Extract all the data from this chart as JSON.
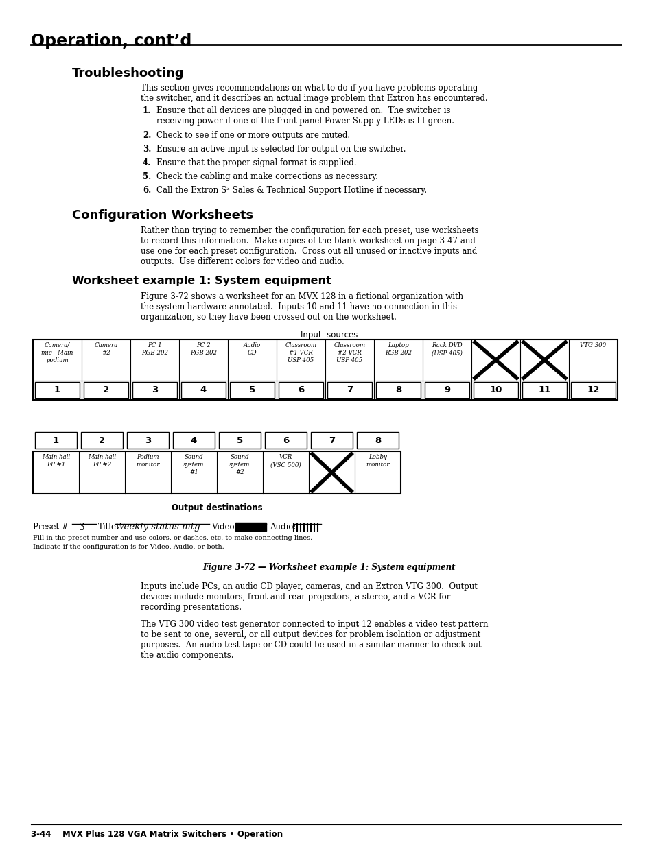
{
  "title": "Operation, cont’d",
  "bg_color": "#ffffff",
  "troubleshooting_heading": "Troubleshooting",
  "troubleshooting_intro": "This section gives recommendations on what to do if you have problems operating\nthe switcher, and it describes an actual image problem that Extron has encountered.",
  "troubleshooting_items": [
    "Ensure that all devices are plugged in and powered on.  The switcher is\nreceiving power if one of the front panel Power Supply LEDs is lit green.",
    "Check to see if one or more outputs are muted.",
    "Ensure an active input is selected for output on the switcher.",
    "Ensure that the proper signal format is supplied.",
    "Check the cabling and make corrections as necessary.",
    "Call the Extron S³ Sales & Technical Support Hotline if necessary."
  ],
  "config_heading": "Configuration Worksheets",
  "config_intro": "Rather than trying to remember the configuration for each preset, use worksheets\nto record this information.  Make copies of the blank worksheet on page 3-47 and\nuse one for each preset configuration.  Cross out all unused or inactive inputs and\noutputs.  Use different colors for video and audio.",
  "worksheet_heading": "Worksheet example 1: System equipment",
  "worksheet_intro": "Figure 3-72 shows a worksheet for an MVX 128 in a fictional organization with\nthe system hardware annotated.  Inputs 10 and 11 have no connection in this\norganization, so they have been crossed out on the worksheet.",
  "input_sources_label": "Input  sources",
  "input_labels": [
    [
      "Camera/",
      "mic - Main",
      "podium"
    ],
    [
      "Camera",
      "#2"
    ],
    [
      "PC 1",
      "RGB 202"
    ],
    [
      "PC 2",
      "RGB 202"
    ],
    [
      "Audio",
      "CD"
    ],
    [
      "Classroom",
      "#1 VCR",
      "USP 405"
    ],
    [
      "Classroom",
      "#2 VCR",
      "USP 405"
    ],
    [
      "Laptop",
      "RGB 202"
    ],
    [
      "Rack DVD",
      "(USP 405)"
    ],
    [
      "CROSS"
    ],
    [
      "CROSS"
    ],
    [
      "VTG 300"
    ]
  ],
  "input_numbers": [
    "1",
    "2",
    "3",
    "4",
    "5",
    "6",
    "7",
    "8",
    "9",
    "10",
    "11",
    "12"
  ],
  "output_numbers": [
    "1",
    "2",
    "3",
    "4",
    "5",
    "6",
    "7",
    "8"
  ],
  "output_labels": [
    [
      "Main hall",
      "FP #1"
    ],
    [
      "Main hall",
      "FP #2"
    ],
    [
      "Podium",
      "monitor"
    ],
    [
      "Sound",
      "system",
      "#1"
    ],
    [
      "Sound",
      "system",
      "#2"
    ],
    [
      "VCR",
      "(VSC 500)"
    ],
    [
      "CROSS"
    ],
    [
      "Lobby",
      "monitor"
    ]
  ],
  "output_destinations_label": "Output destinations",
  "preset_text": "Preset #",
  "preset_num": "3",
  "title_label": "Title:",
  "title_value": "Weekly status mtg",
  "video_label": "Video:",
  "audio_label": "Audio:",
  "fill_note": "Fill in the preset number and use colors, or dashes, etc. to make connecting lines.",
  "indicate_note": "Indicate if the configuration is for Video, Audio, or both.",
  "figure_caption": "Figure 3-72 — Worksheet example 1: System equipment",
  "para1": "Inputs include PCs, an audio CD player, cameras, and an Extron VTG 300.  Output\ndevices include monitors, front and rear projectors, a stereo, and a VCR for\nrecording presentations.",
  "para2": "The VTG 300 video test generator connected to input 12 enables a video test pattern\nto be sent to one, several, or all output devices for problem isolation or adjustment\npurposes.  An audio test tape or CD could be used in a similar manner to check out\nthe audio components.",
  "footer": "3-44    MVX Plus 128 VGA Matrix Switchers • Operation"
}
